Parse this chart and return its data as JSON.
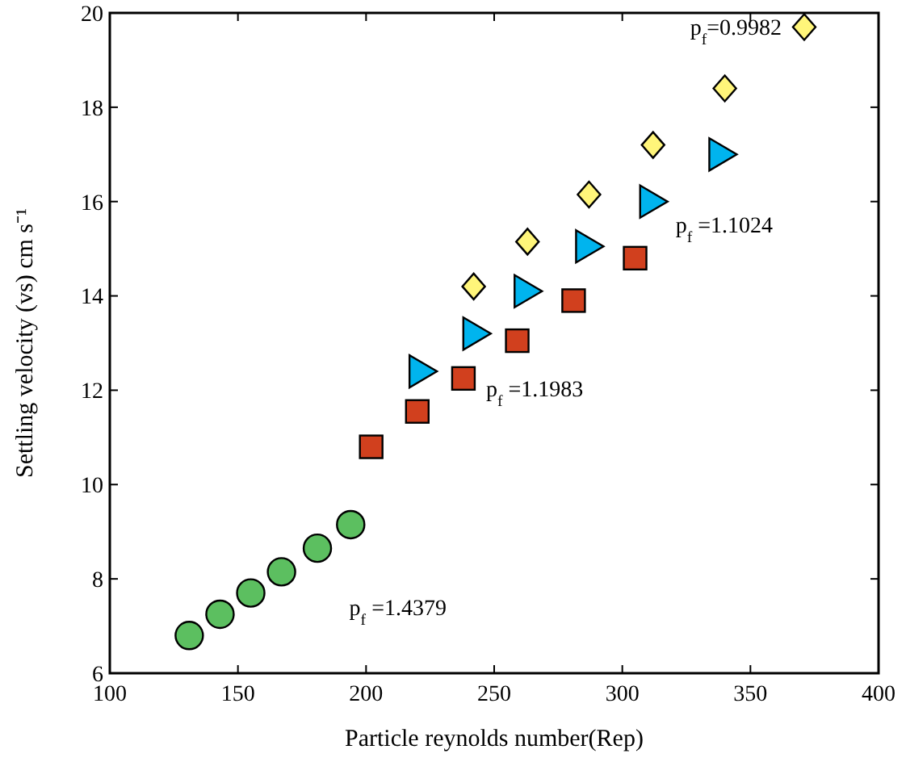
{
  "chart_data": {
    "type": "scatter",
    "xlabel": "Particle reynolds number(Rep)",
    "ylabel": "Settling velocity (vs) cm s⁻¹",
    "xlim": [
      100,
      400
    ],
    "xticks": [
      100,
      150,
      200,
      250,
      300,
      350,
      400
    ],
    "ylim": [
      6,
      20
    ],
    "yticks": [
      6,
      8,
      10,
      12,
      14,
      16,
      18,
      20
    ],
    "grid": false,
    "series": [
      {
        "name": "p$_{f}$ =1.4379",
        "color": "#5cbf60",
        "marker": "circle",
        "x": [
          131,
          143,
          155,
          167,
          181,
          194
        ],
        "values": [
          6.8,
          7.25,
          7.7,
          8.15,
          8.65,
          9.15
        ]
      },
      {
        "name": "p$_{f}$ =1.1983",
        "color": "#d1401e",
        "marker": "square",
        "x": [
          202,
          220,
          238,
          259,
          281,
          305
        ],
        "values": [
          10.8,
          11.55,
          12.25,
          13.05,
          13.9,
          14.8
        ]
      },
      {
        "name": "p$_{f}$ =1.1024",
        "color": "#00b4ee",
        "marker": "triangle",
        "x": [
          222,
          243,
          263,
          287,
          312,
          339
        ],
        "values": [
          12.4,
          13.2,
          14.1,
          15.05,
          16.0,
          17.0
        ]
      },
      {
        "name": "p$_{f}$=0.9982",
        "color": "#fff57a",
        "marker": "diamond",
        "x": [
          242,
          263,
          287,
          312,
          340,
          371
        ],
        "values": [
          14.2,
          15.15,
          16.15,
          17.2,
          18.4,
          19.7
        ]
      }
    ]
  }
}
